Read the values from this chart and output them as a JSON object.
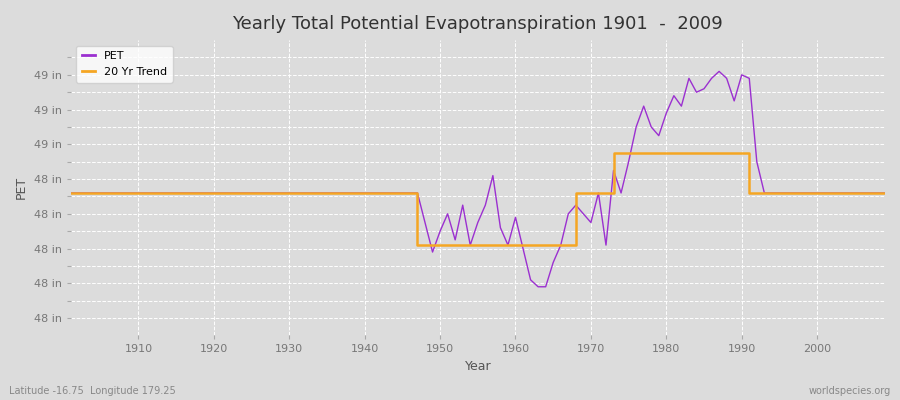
{
  "title": "Yearly Total Potential Evapotranspiration 1901  -  2009",
  "xlabel": "Year",
  "ylabel": "PET",
  "background_color": "#dcdcdc",
  "plot_bg_color": "#dcdcdc",
  "pet_color": "#9b30d0",
  "trend_color": "#f5a623",
  "lat_lon_text": "Latitude -16.75  Longitude 179.25",
  "watermark": "worldspecies.org",
  "years": [
    1901,
    1902,
    1903,
    1904,
    1905,
    1906,
    1907,
    1908,
    1909,
    1910,
    1911,
    1912,
    1913,
    1914,
    1915,
    1916,
    1917,
    1918,
    1919,
    1920,
    1921,
    1922,
    1923,
    1924,
    1925,
    1926,
    1927,
    1928,
    1929,
    1930,
    1931,
    1932,
    1933,
    1934,
    1935,
    1936,
    1937,
    1938,
    1939,
    1940,
    1941,
    1942,
    1943,
    1944,
    1945,
    1946,
    1947,
    1948,
    1949,
    1950,
    1951,
    1952,
    1953,
    1954,
    1955,
    1956,
    1957,
    1958,
    1959,
    1960,
    1961,
    1962,
    1963,
    1964,
    1965,
    1966,
    1967,
    1968,
    1969,
    1970,
    1971,
    1972,
    1973,
    1974,
    1975,
    1976,
    1977,
    1978,
    1979,
    1980,
    1981,
    1982,
    1983,
    1984,
    1985,
    1986,
    1987,
    1988,
    1989,
    1990,
    1991,
    1992,
    1993,
    1994,
    1995,
    1996,
    1997,
    1998,
    1999,
    2000,
    2001,
    2002,
    2003,
    2004,
    2005,
    2006,
    2007,
    2008,
    2009
  ],
  "pet_values": [
    48.72,
    48.72,
    48.72,
    48.72,
    48.72,
    48.72,
    48.72,
    48.72,
    48.72,
    48.72,
    48.72,
    48.72,
    48.72,
    48.72,
    48.72,
    48.72,
    48.72,
    48.72,
    48.72,
    48.72,
    48.72,
    48.72,
    48.72,
    48.72,
    48.72,
    48.72,
    48.72,
    48.72,
    48.72,
    48.72,
    48.72,
    48.72,
    48.72,
    48.72,
    48.72,
    48.72,
    48.72,
    48.72,
    48.72,
    48.72,
    48.72,
    48.72,
    48.72,
    48.72,
    48.72,
    48.72,
    48.72,
    48.55,
    48.38,
    48.5,
    48.6,
    48.45,
    48.65,
    48.42,
    48.55,
    48.65,
    48.82,
    48.52,
    48.42,
    48.58,
    48.4,
    48.22,
    48.18,
    48.18,
    48.32,
    48.42,
    48.6,
    48.65,
    48.6,
    48.55,
    48.72,
    48.42,
    48.85,
    48.72,
    48.9,
    49.1,
    49.22,
    49.1,
    49.05,
    49.18,
    49.28,
    49.22,
    49.38,
    49.3,
    49.32,
    49.38,
    49.42,
    49.38,
    49.25,
    49.4,
    49.38,
    48.9,
    48.72,
    48.72,
    48.72,
    48.72,
    48.72,
    48.72,
    48.72,
    48.72,
    48.72,
    48.72,
    48.72,
    48.72,
    48.72,
    48.72,
    48.72,
    48.72,
    48.72
  ],
  "trend_x": [
    1901,
    1947,
    1947,
    1968,
    1968,
    1973,
    1973,
    1991,
    1991,
    2009
  ],
  "trend_y": [
    48.72,
    48.72,
    48.42,
    48.42,
    48.72,
    48.72,
    48.95,
    48.95,
    48.72,
    48.72
  ],
  "ylim_min": 47.9,
  "ylim_max": 49.6,
  "ytick_positions": [
    48.0,
    48.1,
    48.2,
    48.3,
    48.4,
    48.5,
    48.6,
    48.7,
    48.8,
    48.9,
    49.0,
    49.1,
    49.2,
    49.3,
    49.4,
    49.5
  ],
  "ytick_show": [
    48.0,
    48.2,
    48.4,
    48.6,
    48.8,
    49.0,
    49.2,
    49.4
  ],
  "xticks": [
    1910,
    1920,
    1930,
    1940,
    1950,
    1960,
    1970,
    1980,
    1990,
    2000
  ]
}
